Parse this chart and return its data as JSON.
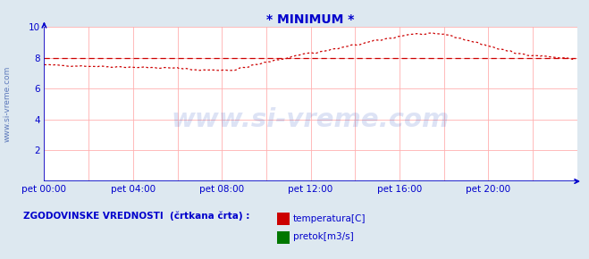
{
  "title": "* MINIMUM *",
  "title_color": "#0000cc",
  "bg_color": "#dde8f0",
  "plot_bg_color": "#ffffff",
  "grid_color": "#ffb0b0",
  "axis_color": "#0000cc",
  "watermark_text": "www.si-vreme.com",
  "watermark_color": "#4466cc",
  "watermark_alpha": 0.18,
  "sidebar_text": "www.si-vreme.com",
  "sidebar_color": "#3355aa",
  "xlim": [
    0,
    288
  ],
  "ylim": [
    0,
    10
  ],
  "yticks": [
    0,
    2,
    4,
    6,
    8,
    10
  ],
  "xtick_labels": [
    "pet 00:00",
    "pet 04:00",
    "pet 08:00",
    "pet 12:00",
    "pet 16:00",
    "pet 20:00"
  ],
  "xtick_positions": [
    0,
    48,
    96,
    144,
    192,
    240
  ],
  "hist_dashed_value": 8.0,
  "line_color": "#cc0000",
  "line2_color": "#007700",
  "legend_label1": "temperatura[C]",
  "legend_label2": "pretok[m3/s]",
  "legend_text": "ZGODOVINSKE VREDNOSTI  (črtkana črta) :"
}
